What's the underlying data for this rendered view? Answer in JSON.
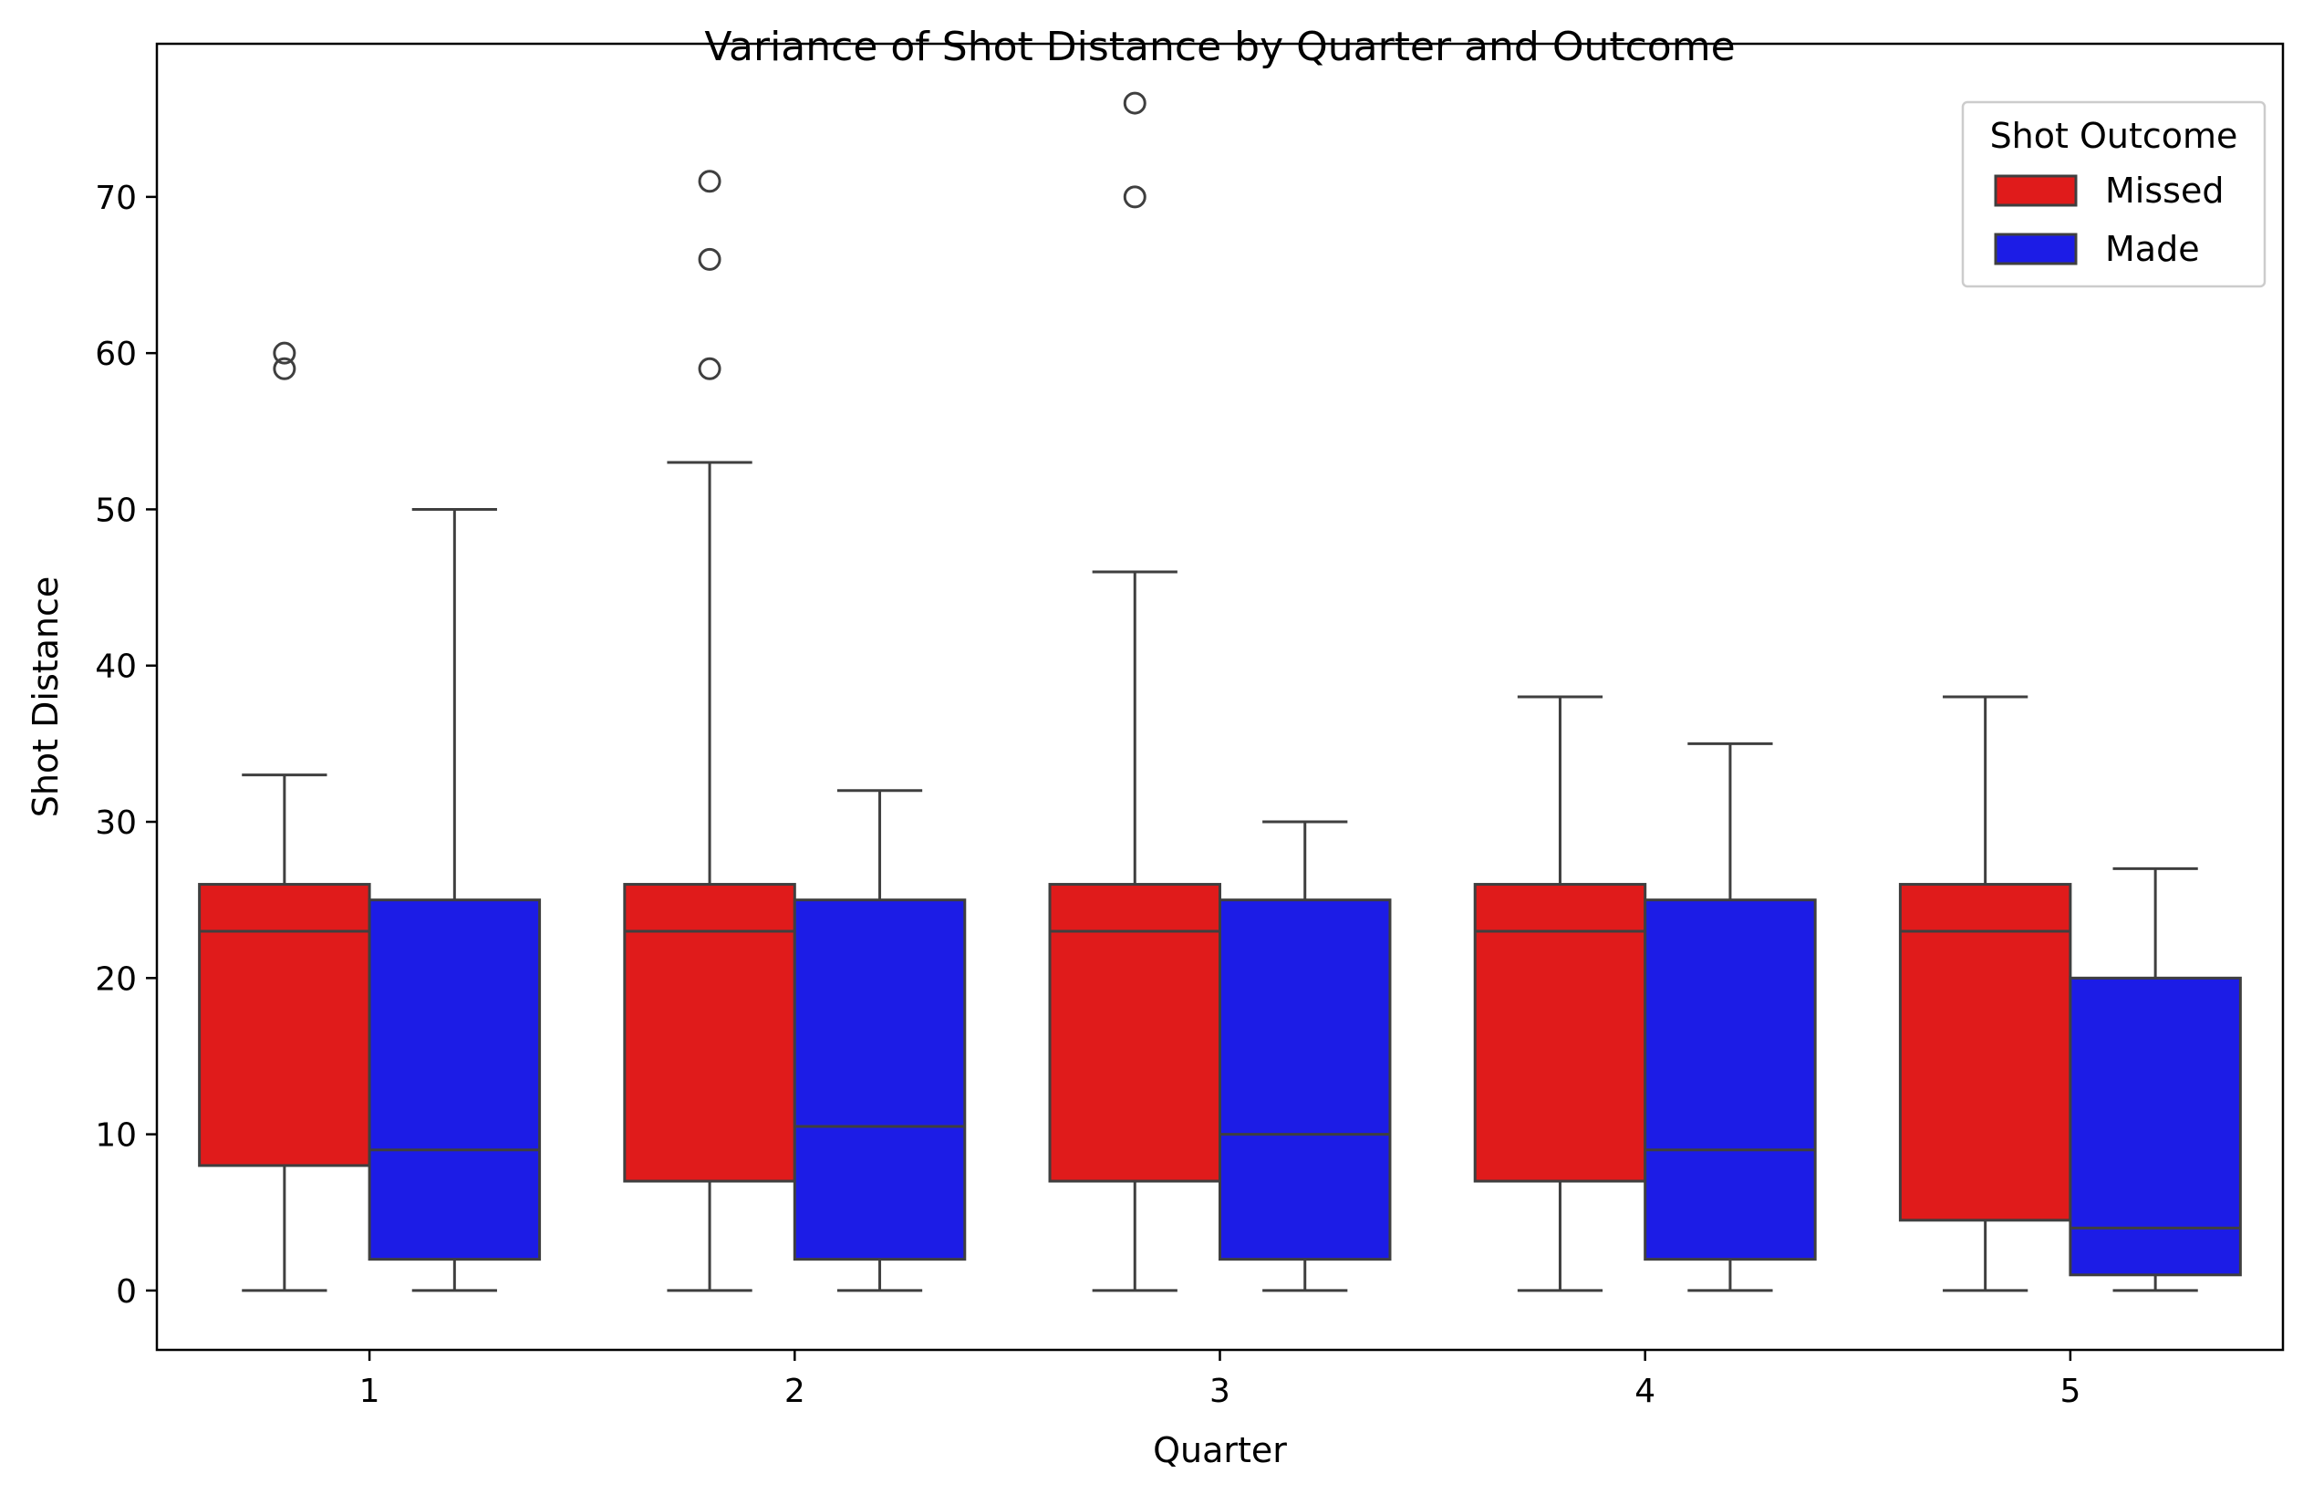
{
  "chart_data": {
    "type": "boxplot",
    "title": "Variance of Shot Distance by Quarter and Outcome",
    "xlabel": "Quarter",
    "ylabel": "Shot Distance",
    "categories": [
      "1",
      "2",
      "3",
      "4",
      "5"
    ],
    "ylim": [
      -3.8,
      79.8
    ],
    "yticks": [
      0,
      10,
      20,
      30,
      40,
      50,
      60,
      70
    ],
    "grid": false,
    "legend": {
      "title": "Shot Outcome",
      "placement": "upper-right"
    },
    "series": [
      {
        "name": "Missed",
        "color": "#e01b1b",
        "boxes": [
          {
            "whislo": 0,
            "q1": 8,
            "med": 23,
            "q3": 26,
            "whishi": 33,
            "fliers": [
              59,
              60
            ]
          },
          {
            "whislo": 0,
            "q1": 7,
            "med": 23,
            "q3": 26,
            "whishi": 53,
            "fliers": [
              59,
              66,
              71
            ]
          },
          {
            "whislo": 0,
            "q1": 7,
            "med": 23,
            "q3": 26,
            "whishi": 46,
            "fliers": [
              70,
              76
            ]
          },
          {
            "whislo": 0,
            "q1": 7,
            "med": 23,
            "q3": 26,
            "whishi": 38,
            "fliers": []
          },
          {
            "whislo": 0,
            "q1": 4.5,
            "med": 23,
            "q3": 26,
            "whishi": 38,
            "fliers": []
          }
        ]
      },
      {
        "name": "Made",
        "color": "#1c1ce6",
        "boxes": [
          {
            "whislo": 0,
            "q1": 2,
            "med": 9,
            "q3": 25,
            "whishi": 50,
            "fliers": []
          },
          {
            "whislo": 0,
            "q1": 2,
            "med": 10.5,
            "q3": 25,
            "whishi": 32,
            "fliers": []
          },
          {
            "whislo": 0,
            "q1": 2,
            "med": 10,
            "q3": 25,
            "whishi": 30,
            "fliers": []
          },
          {
            "whislo": 0,
            "q1": 2,
            "med": 9,
            "q3": 25,
            "whishi": 35,
            "fliers": []
          },
          {
            "whislo": 0,
            "q1": 1,
            "med": 4,
            "q3": 20,
            "whishi": 27,
            "fliers": []
          }
        ]
      }
    ]
  }
}
